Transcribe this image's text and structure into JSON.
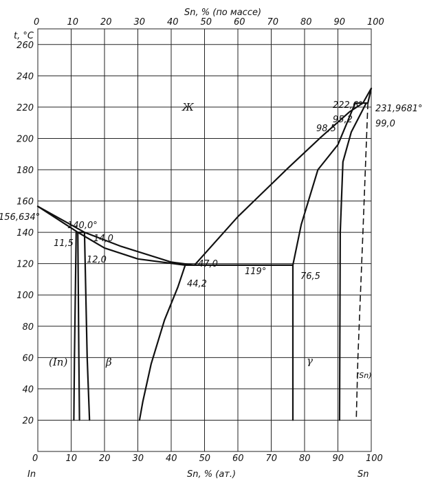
{
  "axes": {
    "top_title": "Sn, % (по массе)",
    "bottom_title": "Sn, % (ат.)",
    "y_title": "t, °C",
    "bottom_left_element": "In",
    "bottom_right_element": "Sn",
    "x_ticks": [
      "0",
      "10",
      "20",
      "30",
      "40",
      "50",
      "60",
      "70",
      "80",
      "90",
      "100"
    ],
    "y_ticks": [
      "20",
      "40",
      "60",
      "80",
      "100",
      "120",
      "140",
      "160",
      "180",
      "200",
      "220",
      "240",
      "260"
    ]
  },
  "phases": {
    "liquid": "Ж",
    "in_solid": "(In)",
    "beta": "β",
    "gamma": "γ",
    "sn_solid": "(Sn)"
  },
  "annotations": {
    "in_melt": "156,634°",
    "peritectic_t": "140,0°",
    "p_11_5": "11,5",
    "p_12_0": "12,0",
    "p_14_0": "14,0",
    "eutectic_47": "47,0",
    "eutectic_44": "44,2",
    "eutectic_t": "119°",
    "gamma_76": "76,5",
    "sn_peri_t": "222,6°",
    "sn_melt": "231,9681°",
    "p_95_2": "95,2",
    "p_98_5": "98,5",
    "p_99_0": "99,0"
  },
  "chart_data": {
    "type": "phase-diagram",
    "x_unit": "Sn, at.%",
    "y_unit": "°C",
    "xlim": [
      0,
      100
    ],
    "ylim": [
      0,
      270
    ],
    "grid": true,
    "lines": [
      {
        "kind": "liquidus-in",
        "points": [
          [
            0,
            156.6
          ],
          [
            14,
            140
          ],
          [
            25,
            131
          ],
          [
            40,
            121
          ],
          [
            47,
            119
          ]
        ]
      },
      {
        "kind": "solidus-beta",
        "points": [
          [
            0,
            156.6
          ],
          [
            12,
            140
          ],
          [
            20,
            130
          ],
          [
            30,
            123
          ],
          [
            44.2,
            119
          ]
        ]
      },
      {
        "kind": "liquidus-sn",
        "points": [
          [
            47,
            119
          ],
          [
            60,
            150
          ],
          [
            75,
            181
          ],
          [
            85,
            201
          ],
          [
            93.5,
            217
          ],
          [
            97.5,
            222.6
          ],
          [
            100,
            231.97
          ]
        ]
      },
      {
        "kind": "in-solvus",
        "points": [
          [
            11.5,
            140
          ],
          [
            11,
            60
          ],
          [
            10.8,
            20
          ]
        ]
      },
      {
        "kind": "beta-solvus-left",
        "points": [
          [
            12,
            140
          ],
          [
            12.3,
            60
          ],
          [
            12.5,
            20
          ]
        ]
      },
      {
        "kind": "beta-solvus-right",
        "points": [
          [
            14,
            140
          ],
          [
            14.8,
            60
          ],
          [
            15.5,
            20
          ]
        ]
      },
      {
        "kind": "beta-gamma-boundary",
        "points": [
          [
            44.2,
            119
          ],
          [
            42,
            105
          ],
          [
            38,
            84
          ],
          [
            34,
            56
          ],
          [
            31.5,
            32
          ],
          [
            30.5,
            20
          ]
        ]
      },
      {
        "kind": "gamma-left",
        "points": [
          [
            76.5,
            119
          ],
          [
            76.5,
            20
          ]
        ]
      },
      {
        "kind": "gamma-upper",
        "points": [
          [
            76.5,
            119
          ],
          [
            79,
            145
          ],
          [
            84,
            180
          ],
          [
            90,
            196
          ],
          [
            95.2,
            222.6
          ]
        ]
      },
      {
        "kind": "gamma-right",
        "points": [
          [
            98.5,
            222.6
          ],
          [
            94,
            204
          ],
          [
            91.5,
            185
          ],
          [
            90.7,
            140
          ],
          [
            90.5,
            20
          ]
        ]
      },
      {
        "kind": "sn-solidus",
        "points": [
          [
            99,
            222.6
          ],
          [
            100,
            231.97
          ]
        ]
      },
      {
        "kind": "sn-solvus-dashed",
        "points": [
          [
            99,
            222.6
          ],
          [
            97.5,
            140
          ],
          [
            96,
            60
          ],
          [
            95.5,
            20
          ]
        ]
      },
      {
        "kind": "eutectic-isotherm",
        "points": [
          [
            44.2,
            119
          ],
          [
            76.5,
            119
          ]
        ]
      },
      {
        "kind": "peritectic-isotherm-140",
        "points": [
          [
            11.5,
            140
          ],
          [
            14,
            140
          ]
        ]
      },
      {
        "kind": "peritectic-isotherm-222",
        "points": [
          [
            95.2,
            222.6
          ],
          [
            99,
            222.6
          ]
        ]
      }
    ]
  }
}
